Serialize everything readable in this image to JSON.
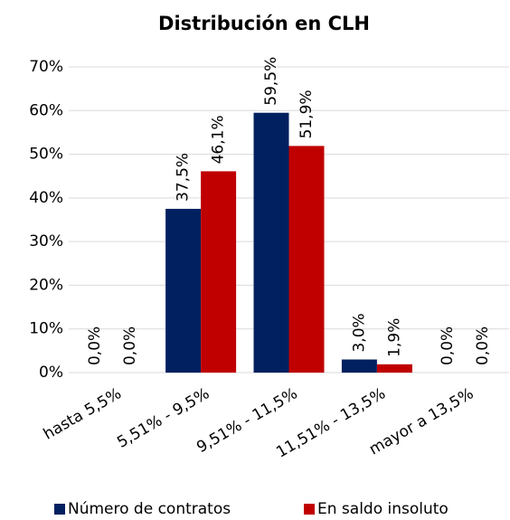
{
  "chart_data": {
    "type": "bar",
    "title": "Distribución en CLH",
    "categories": [
      "hasta 5,5%",
      "5,51% - 9,5%",
      "9,51% - 11,5%",
      "11,51% - 13,5%",
      "mayor a 13,5%"
    ],
    "series": [
      {
        "name": "Número de contratos",
        "color": "#002060",
        "values": [
          0,
          37.5,
          59.5,
          3.0,
          0
        ],
        "value_labels": [
          "0,0%",
          "37,5%",
          "59,5%",
          "3,0%",
          "0,0%"
        ]
      },
      {
        "name": "En saldo insoluto",
        "color": "#c00000",
        "values": [
          0,
          46.1,
          51.9,
          1.9,
          0
        ],
        "value_labels": [
          "0,0%",
          "46,1%",
          "51,9%",
          "1,9%",
          "0,0%"
        ]
      }
    ],
    "ylim": [
      0,
      70
    ],
    "yticks": [
      {
        "value": 0,
        "label": "0%"
      },
      {
        "value": 10,
        "label": "10%"
      },
      {
        "value": 20,
        "label": "20%"
      },
      {
        "value": 30,
        "label": "30%"
      },
      {
        "value": 40,
        "label": "40%"
      },
      {
        "value": 50,
        "label": "50%"
      },
      {
        "value": 60,
        "label": "60%"
      },
      {
        "value": 70,
        "label": "70%"
      }
    ],
    "grid": true,
    "legend": "bottom"
  }
}
